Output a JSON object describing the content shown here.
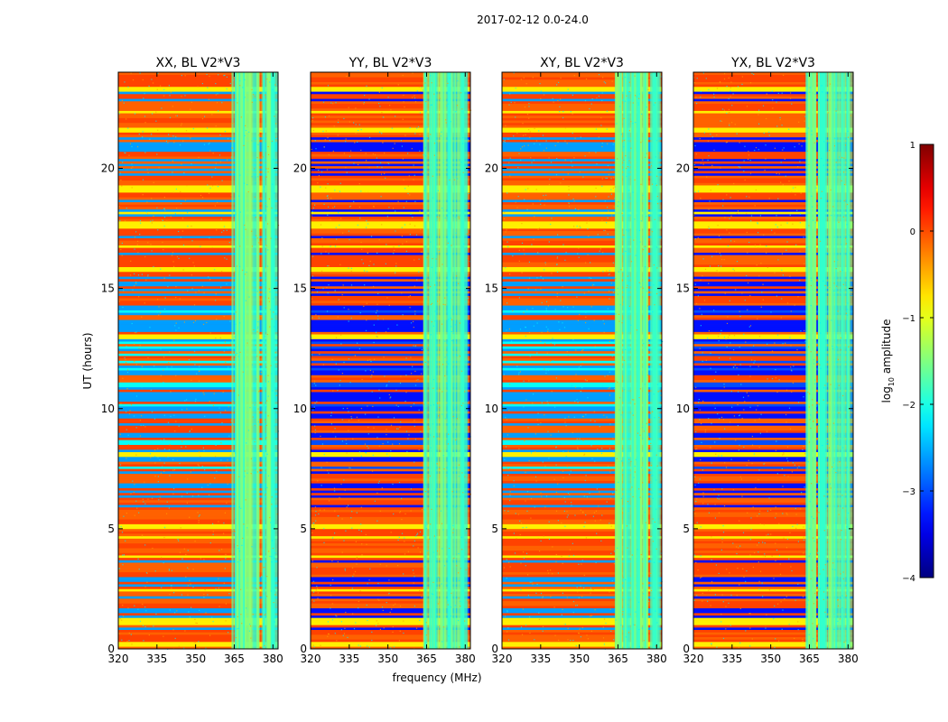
{
  "chart_data": {
    "type": "heatmap",
    "suptitle": "2017-02-12 0.0-24.0",
    "xlabel": "frequency (MHz)",
    "ylabel": "UT (hours)",
    "xlim": [
      320,
      382
    ],
    "ylim": [
      0,
      24
    ],
    "xticks": [
      320,
      335,
      350,
      365,
      380
    ],
    "yticks": [
      0,
      5,
      10,
      15,
      20
    ],
    "panels": [
      {
        "title": "XX, BL V2*V3",
        "pol": "XX"
      },
      {
        "title": "YY, BL V2*V3",
        "pol": "YY"
      },
      {
        "title": "XY, BL V2*V3",
        "pol": "XY"
      },
      {
        "title": "YX, BL V2*V3",
        "pol": "YX"
      }
    ],
    "colorbar": {
      "label": "log10 amplitude",
      "label_main": "log",
      "label_sub": "10",
      "label_rest": " amplitude",
      "range": [
        -4,
        1
      ],
      "ticks": [
        -4,
        -3,
        -2,
        -1,
        0,
        1
      ],
      "tick_labels": [
        "−4",
        "−3",
        "−2",
        "−1",
        "0",
        "1"
      ],
      "colormap": "jet"
    },
    "rfi_band_mhz": [
      363.5,
      380.5
    ],
    "bright_bands_ut": [
      0.2,
      1.2,
      5.1,
      8.1,
      13.0,
      15.8,
      17.6,
      19.2,
      23.3
    ]
  }
}
